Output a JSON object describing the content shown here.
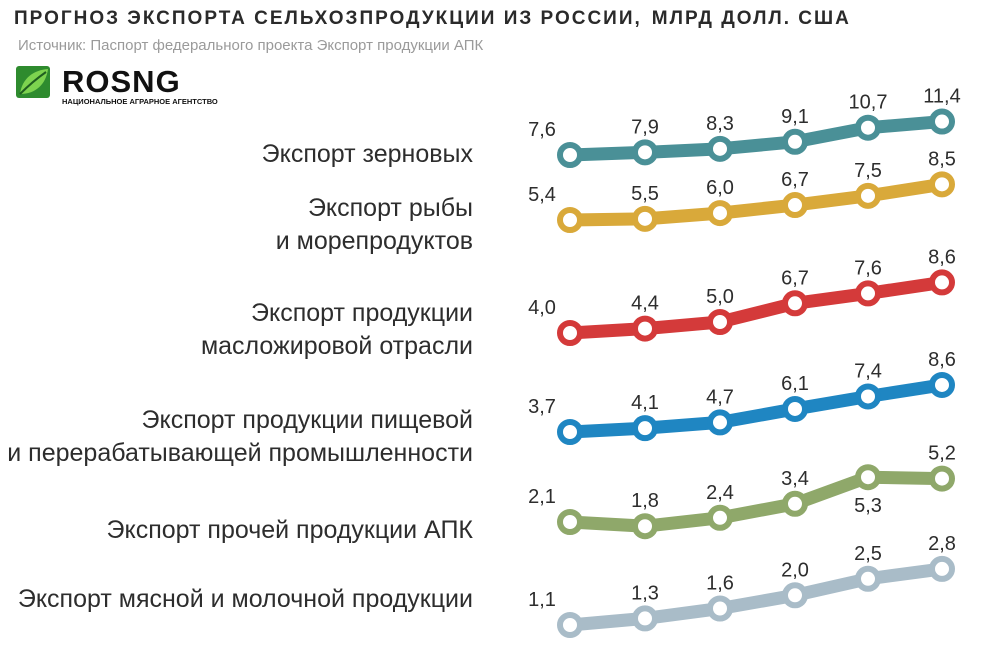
{
  "header": {
    "title": "ПРОГНОЗ ЭКСПОРТА СЕЛЬХОЗПРОДУКЦИИ ИЗ РОССИИ,",
    "unit": "МЛРД ДОЛЛ. США",
    "source": "Источник: Паспорт федерального проекта Экспорт продукции АПК"
  },
  "logo": {
    "name": "ROSNG",
    "tagline": "НАЦИОНАЛЬНОЕ АГРАРНОЕ АГЕНТСТВО",
    "icon": "leaf-icon"
  },
  "chart_data": {
    "type": "line",
    "x": [
      "",
      "",
      "",
      "",
      "",
      ""
    ],
    "series": [
      {
        "name": "Экспорт зерновых",
        "lines": [
          "Экспорт зерновых"
        ],
        "color": "#4a9097",
        "values": [
          7.6,
          7.9,
          8.3,
          9.1,
          10.7,
          11.4
        ],
        "labels": [
          "7,6",
          "7,9",
          "8,3",
          "9,1",
          "10,7",
          "11,4"
        ]
      },
      {
        "name": "Экспорт рыбы и морепродуктов",
        "lines": [
          "Экспорт рыбы",
          "и морепродуктов"
        ],
        "color": "#d9a93a",
        "values": [
          5.4,
          5.5,
          6.0,
          6.7,
          7.5,
          8.5
        ],
        "labels": [
          "5,4",
          "5,5",
          "6,0",
          "6,7",
          "7,5",
          "8,5"
        ]
      },
      {
        "name": "Экспорт продукции масложировой отрасли",
        "lines": [
          "Экспорт продукции",
          "масложировой отрасли"
        ],
        "color": "#d43a3a",
        "values": [
          4.0,
          4.4,
          5.0,
          6.7,
          7.6,
          8.6
        ],
        "labels": [
          "4,0",
          "4,4",
          "5,0",
          "6,7",
          "7,6",
          "8,6"
        ]
      },
      {
        "name": "Экспорт продукции пищевой и перерабатывающей промышленности",
        "lines": [
          "Экспорт продукции пищевой",
          "и перерабатывающей промышленности"
        ],
        "color": "#1f86c2",
        "values": [
          3.7,
          4.1,
          4.7,
          6.1,
          7.4,
          8.6
        ],
        "labels": [
          "3,7",
          "4,1",
          "4,7",
          "6,1",
          "7,4",
          "8,6"
        ]
      },
      {
        "name": "Экспорт прочей продукции АПК",
        "lines": [
          "Экспорт прочей продукции АПК"
        ],
        "color": "#8fa86a",
        "values": [
          2.1,
          1.8,
          2.4,
          3.4,
          5.3,
          5.2
        ],
        "labels": [
          "2,1",
          "1,8",
          "2,4",
          "3,4",
          "5,3",
          "5,2"
        ]
      },
      {
        "name": "Экспорт мясной и молочной продукции",
        "lines": [
          "Экспорт мясной и молочной продукции"
        ],
        "color": "#a9bcc8",
        "values": [
          1.1,
          1.3,
          1.6,
          2.0,
          2.5,
          2.8
        ],
        "labels": [
          "1,1",
          "1,3",
          "1,6",
          "2,0",
          "2,5",
          "2,8"
        ]
      }
    ],
    "grid": false,
    "legend": "left"
  }
}
